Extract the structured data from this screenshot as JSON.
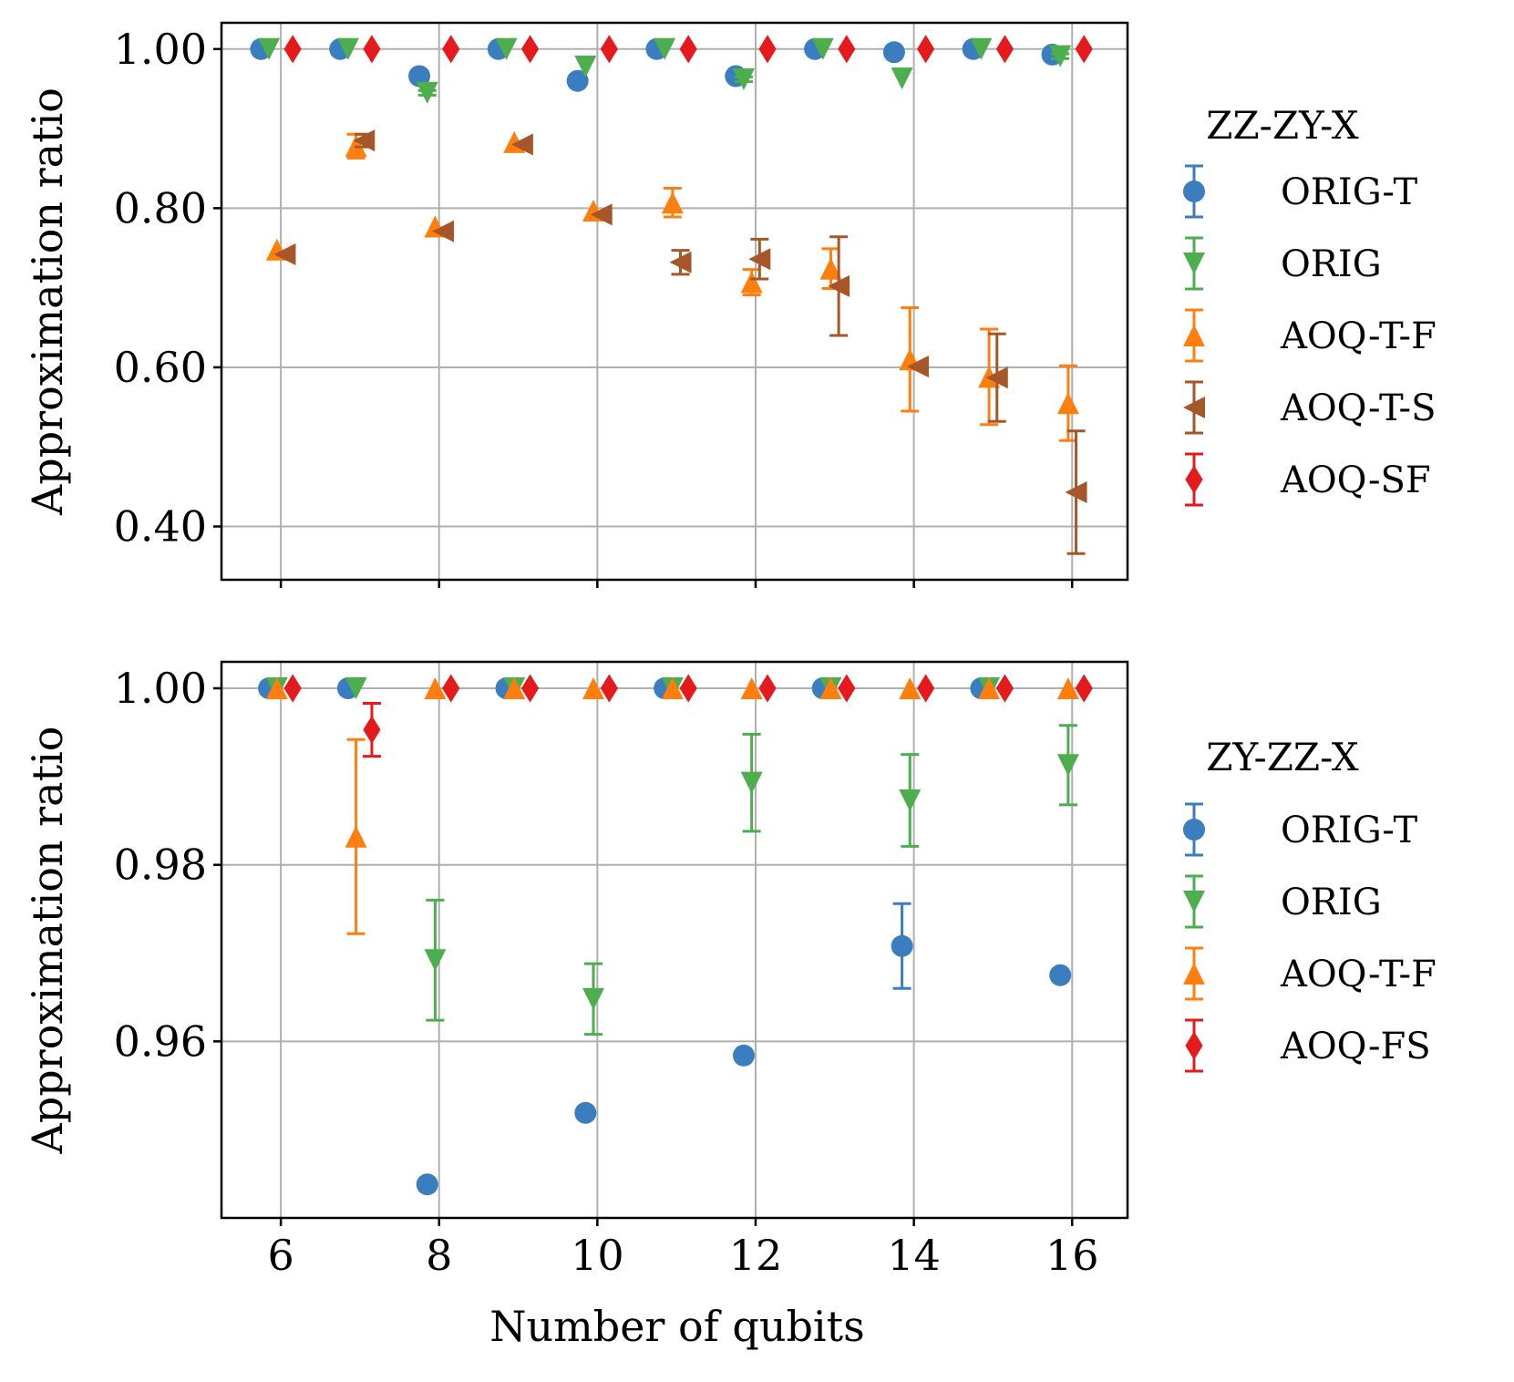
{
  "figure": {
    "xlabel": "Number of qubits",
    "x_ticks": [
      6,
      8,
      10,
      12,
      14,
      16
    ]
  },
  "chart_data": [
    {
      "type": "scatter",
      "legend_title": "ZZ-ZY-X",
      "ylabel": "Approximation ratio",
      "xlim": [
        5.25,
        16.7
      ],
      "ylim": [
        0.333,
        1.033
      ],
      "y_ticks": [
        0.4,
        0.6,
        0.8,
        1.0
      ],
      "y_tick_labels": [
        "0.40",
        "0.60",
        "0.80",
        "1.00"
      ],
      "grid": true,
      "legend_position": "right",
      "x": [
        6,
        7,
        8,
        9,
        10,
        11,
        12,
        13,
        14,
        15,
        16
      ],
      "series": [
        {
          "name": "ORIG-T",
          "color": "#3a7ebf",
          "marker": "circle",
          "offset": -0.25,
          "values": [
            1.0,
            1.0,
            0.966,
            1.0,
            0.96,
            1.0,
            0.966,
            1.0,
            0.996,
            1.0,
            0.993
          ],
          "errors": [
            0,
            0,
            0.005,
            0,
            0.004,
            0,
            0.003,
            0,
            0,
            0,
            0.002
          ]
        },
        {
          "name": "ORIG",
          "color": "#4cae4c",
          "marker": "triangle-down",
          "offset": -0.15,
          "values": [
            1.0,
            1.0,
            0.945,
            1.0,
            0.978,
            1.0,
            0.962,
            1.0,
            0.963,
            1.0,
            0.991
          ],
          "errors": [
            0,
            0,
            0.003,
            0,
            0,
            0,
            0.003,
            0,
            0,
            0,
            0.003
          ]
        },
        {
          "name": "AOQ-T-F",
          "color": "#ff7f0e",
          "marker": "triangle-up",
          "offset": -0.05,
          "values": [
            0.748,
            0.878,
            0.777,
            0.883,
            0.797,
            0.807,
            0.707,
            0.724,
            0.61,
            0.588,
            0.555
          ],
          "errors": [
            0,
            0.015,
            0,
            0,
            0,
            0.018,
            0.016,
            0.025,
            0.065,
            0.06,
            0.047
          ]
        },
        {
          "name": "AOQ-T-S",
          "color": "#a65628",
          "marker": "triangle-left",
          "offset": 0.05,
          "values": [
            0.742,
            0.885,
            0.771,
            0.88,
            0.792,
            0.732,
            0.736,
            0.702,
            0.601,
            0.587,
            0.443
          ],
          "errors": [
            0,
            0.008,
            0,
            0,
            0,
            0.015,
            0.025,
            0.062,
            0,
            0.055,
            0.077
          ]
        },
        {
          "name": "AOQ-SF",
          "color": "#e41a1c",
          "marker": "diamond",
          "offset": 0.15,
          "values": [
            1.0,
            1.0,
            1.0,
            1.0,
            1.0,
            1.0,
            1.0,
            1.0,
            1.0,
            1.0,
            1.0
          ],
          "errors": [
            0,
            0,
            0,
            0,
            0,
            0,
            0,
            0,
            0,
            0,
            0
          ]
        }
      ]
    },
    {
      "type": "scatter",
      "legend_title": "ZY-ZZ-X",
      "ylabel": "Approximation ratio",
      "xlim": [
        5.25,
        16.7
      ],
      "ylim": [
        0.94,
        1.003
      ],
      "y_ticks": [
        0.96,
        0.98,
        1.0
      ],
      "y_tick_labels": [
        "0.96",
        "0.98",
        "1.00"
      ],
      "grid": true,
      "legend_position": "right",
      "x": [
        6,
        7,
        8,
        9,
        10,
        11,
        12,
        13,
        14,
        15,
        16
      ],
      "series": [
        {
          "name": "ORIG-T",
          "color": "#3a7ebf",
          "marker": "circle",
          "offset": -0.15,
          "values": [
            1.0,
            1.0,
            0.9438,
            1.0,
            0.9519,
            1.0,
            0.9584,
            1.0,
            0.9708,
            1.0,
            0.9675
          ],
          "errors": [
            0,
            0,
            0,
            0,
            0,
            0,
            0,
            0,
            0.0048,
            0,
            0
          ]
        },
        {
          "name": "ORIG",
          "color": "#4cae4c",
          "marker": "triangle-down",
          "offset": -0.05,
          "values": [
            1.0,
            1.0,
            0.9692,
            1.0,
            0.9648,
            1.0,
            0.9893,
            1.0,
            0.9873,
            1.0,
            0.9913
          ],
          "errors": [
            0,
            0,
            0.0068,
            0,
            0.004,
            0,
            0.0055,
            0,
            0.0052,
            0,
            0.0045
          ]
        },
        {
          "name": "AOQ-T-F",
          "color": "#ff7f0e",
          "marker": "triangle-up",
          "offset": -0.05,
          "values": [
            1.0,
            0.9832,
            1.0,
            1.0,
            1.0,
            1.0,
            1.0,
            1.0,
            1.0,
            1.0,
            1.0
          ],
          "errors": [
            0,
            0.011,
            0,
            0,
            0,
            0,
            0,
            0,
            0,
            0,
            0
          ]
        },
        {
          "name": "AOQ-FS",
          "color": "#e41a1c",
          "marker": "diamond",
          "offset": 0.15,
          "values": [
            1.0,
            0.9953,
            1.0,
            1.0,
            1.0,
            1.0,
            1.0,
            1.0,
            1.0,
            1.0,
            1.0
          ],
          "errors": [
            0,
            0.003,
            0,
            0,
            0,
            0,
            0,
            0,
            0,
            0,
            0
          ]
        }
      ]
    }
  ]
}
